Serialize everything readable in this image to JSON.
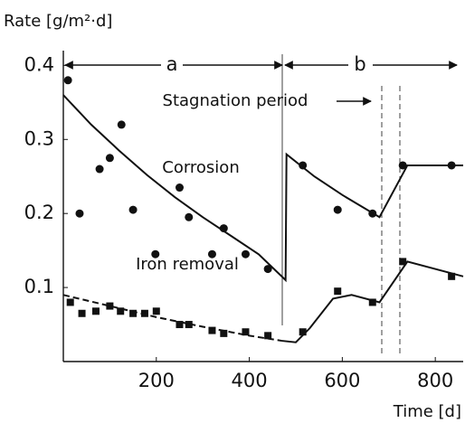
{
  "chart_data": {
    "type": "scatter",
    "ylabel": "Rate [g/m²·d]",
    "xlabel": "Time [d]",
    "xlim": [
      0,
      860
    ],
    "ylim": [
      0,
      0.42
    ],
    "xticks": [
      200,
      400,
      600,
      800
    ],
    "yticks": [
      0.1,
      0.2,
      0.3,
      0.4
    ],
    "annotations": [
      "a",
      "b",
      "Stagnation period"
    ],
    "series": [
      {
        "name": "Corrosion",
        "marker": "circle",
        "color": "#111",
        "x": [
          10,
          35,
          78,
          100,
          125,
          150,
          198,
          250,
          270,
          320,
          345,
          392,
          440,
          515,
          590,
          665,
          730,
          835
        ],
        "values": [
          0.38,
          0.2,
          0.26,
          0.275,
          0.32,
          0.205,
          0.145,
          0.235,
          0.195,
          0.145,
          0.18,
          0.145,
          0.125,
          0.265,
          0.205,
          0.2,
          0.265,
          0.265
        ],
        "fit": [
          {
            "style": "solid",
            "x": [
              0,
              60,
              120,
              180,
              240,
              300,
              360,
              420,
              478,
              480,
              540,
              600,
              680,
              740,
              860
            ],
            "values": [
              0.36,
              0.32,
              0.285,
              0.252,
              0.222,
              0.195,
              0.17,
              0.145,
              0.11,
              0.28,
              0.25,
              0.225,
              0.195,
              0.265,
              0.265
            ]
          }
        ]
      },
      {
        "name": "Iron removal",
        "marker": "square",
        "color": "#111",
        "x": [
          15,
          40,
          70,
          100,
          123,
          150,
          175,
          200,
          250,
          270,
          320,
          345,
          392,
          440,
          515,
          590,
          665,
          730,
          835
        ],
        "values": [
          0.08,
          0.065,
          0.068,
          0.075,
          0.068,
          0.065,
          0.065,
          0.068,
          0.05,
          0.05,
          0.042,
          0.038,
          0.04,
          0.035,
          0.04,
          0.095,
          0.08,
          0.135,
          0.115
        ],
        "fit": [
          {
            "style": "dashed",
            "x": [
              0,
              100,
              200,
              300,
              400,
              470
            ],
            "values": [
              0.09,
              0.075,
              0.06,
              0.047,
              0.035,
              0.028
            ]
          },
          {
            "style": "solid",
            "x": [
              470,
              500,
              530,
              580,
              620,
              680,
              740,
              860
            ],
            "values": [
              0.028,
              0.026,
              0.045,
              0.085,
              0.09,
              0.08,
              0.135,
              0.115
            ]
          }
        ]
      }
    ]
  }
}
